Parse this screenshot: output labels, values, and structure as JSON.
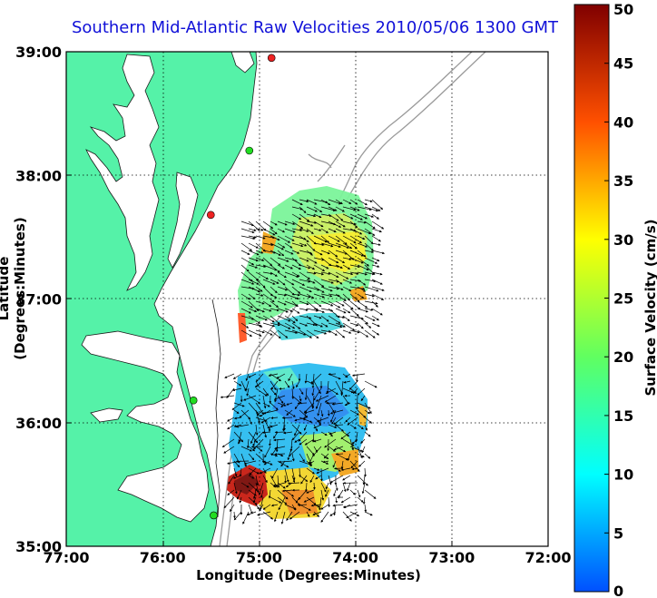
{
  "title": "Southern Mid-Atlantic Raw Velocities 2010/05/06 1300 GMT",
  "x_axis": {
    "label": "Longitude (Degrees:Minutes)",
    "ticks": [
      "77:00",
      "76:00",
      "75:00",
      "74:00",
      "73:00",
      "72:00"
    ]
  },
  "y_axis": {
    "label": "Latitude (Degrees:Minutes)",
    "ticks": [
      "39:00",
      "38:00",
      "37:00",
      "36:00",
      "35:00"
    ]
  },
  "colorbar": {
    "label": "Surface Velocity (cm/s)",
    "min": 0,
    "max": 50,
    "ticks": [
      "0",
      "5",
      "10",
      "15",
      "20",
      "25",
      "30",
      "35",
      "40",
      "45",
      "50"
    ]
  },
  "colors": {
    "land": "#55f2a8",
    "title": "#1010d8",
    "bathymetry": "#9a9a9a",
    "station_green": "#22dd22",
    "station_red": "#ee2222"
  },
  "stations": [
    {
      "lon": -74.87,
      "lat": 38.95,
      "status": "red"
    },
    {
      "lon": -75.1,
      "lat": 38.2,
      "status": "green"
    },
    {
      "lon": -75.5,
      "lat": 37.68,
      "status": "red"
    },
    {
      "lon": -75.68,
      "lat": 36.18,
      "status": "green"
    },
    {
      "lon": -75.47,
      "lat": 35.25,
      "status": "green"
    }
  ]
}
